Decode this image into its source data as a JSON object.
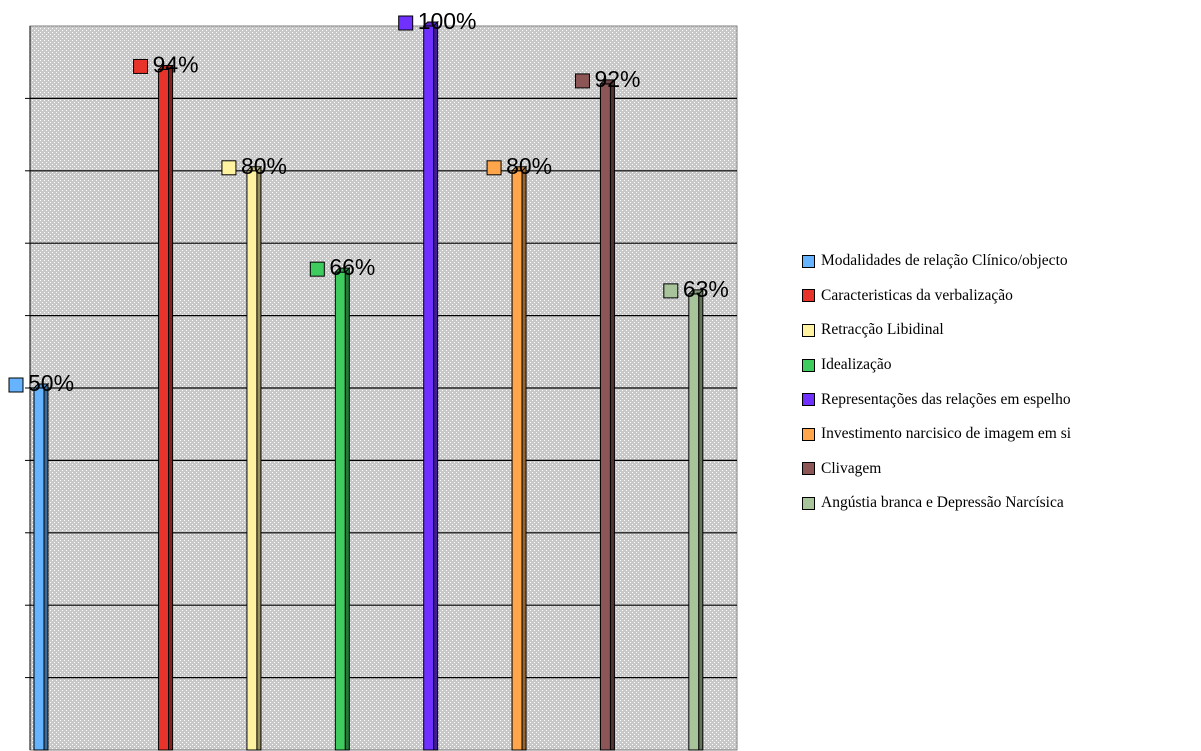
{
  "chart_data": {
    "type": "bar",
    "subtype": "3d-column",
    "title": "",
    "xlabel": "",
    "ylabel": "",
    "ylim": [
      0,
      100
    ],
    "grid": true,
    "legend_position": "right",
    "series": [
      {
        "name": "Modalidades de relação Clínico/objecto",
        "value": 50,
        "label": "50%",
        "color": "#66b3ff"
      },
      {
        "name": "Caracteristicas da verbalização",
        "value": 94,
        "label": "94%",
        "color": "#e8332a"
      },
      {
        "name": "Retracção Libidinal",
        "value": 80,
        "label": "80%",
        "color": "#fff2a0"
      },
      {
        "name": "Idealização",
        "value": 66,
        "label": "66%",
        "color": "#3fcc5f"
      },
      {
        "name": "Representações das relações em espelho",
        "value": 100,
        "label": "100%",
        "color": "#7030ff"
      },
      {
        "name": "Investimento narcisico de imagem em si",
        "value": 80,
        "label": "80%",
        "color": "#ffa64d"
      },
      {
        "name": "Clivagem",
        "value": 92,
        "label": "92%",
        "color": "#8c5656"
      },
      {
        "name": "Angústia branca e Depressão Narcísica",
        "value": 63,
        "label": "63%",
        "color": "#a8c49a"
      }
    ]
  }
}
